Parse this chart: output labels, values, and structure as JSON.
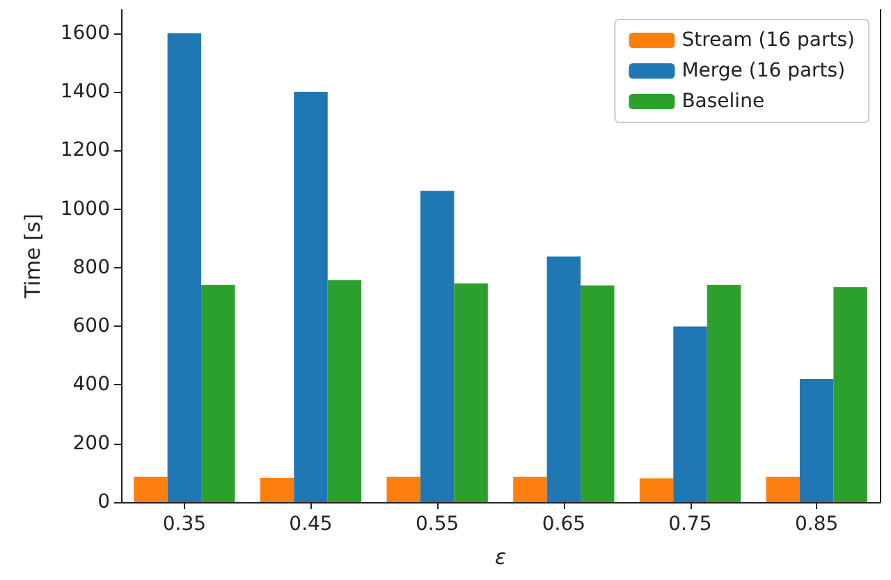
{
  "chart_data": {
    "type": "bar",
    "xlabel": "ε",
    "ylabel": "Time [s]",
    "categories": [
      "0.35",
      "0.45",
      "0.55",
      "0.65",
      "0.75",
      "0.85"
    ],
    "series": [
      {
        "name": "Stream (16 parts)",
        "color": "#ff7f0e",
        "values": [
          86,
          83,
          86,
          86,
          81,
          86
        ]
      },
      {
        "name": "Merge (16 parts)",
        "color": "#1f77b4",
        "values": [
          1600,
          1400,
          1062,
          838,
          599,
          420
        ]
      },
      {
        "name": "Baseline",
        "color": "#2ca02c",
        "values": [
          741,
          757,
          746,
          739,
          741,
          733
        ]
      }
    ],
    "ylim": [
      0,
      1680
    ],
    "yticks": [
      0,
      200,
      400,
      600,
      800,
      1000,
      1200,
      1400,
      1600
    ],
    "grid": false,
    "legend": "top right"
  }
}
